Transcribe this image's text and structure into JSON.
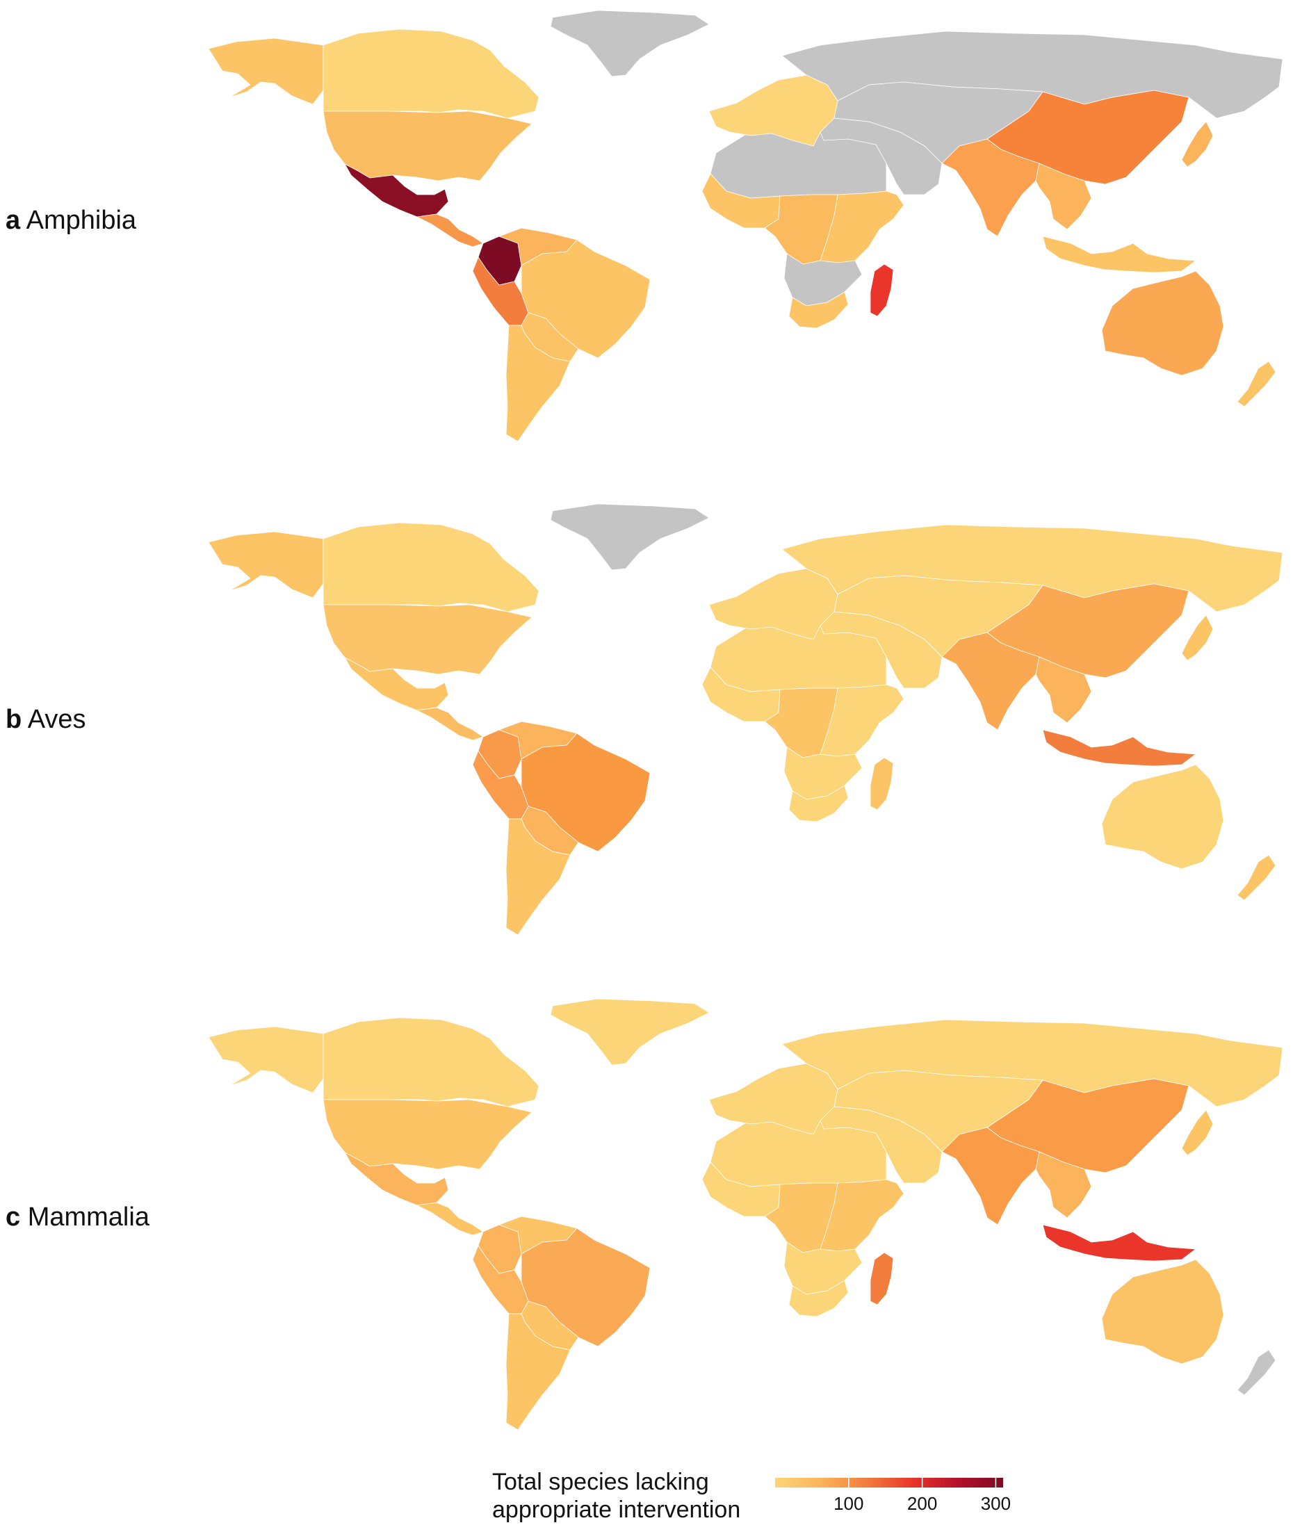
{
  "panels": [
    {
      "letter": "a",
      "name": "Amphibia",
      "regions": {
        "alaska": "#fcc464",
        "canada": "#fcd579",
        "usa": "#fbbd62",
        "greenland": "#c4c4c4",
        "mexico": "#8b0f24",
        "central_america": "#f7974a",
        "colombia": "#7d0b23",
        "venezuela": "#fbb45b",
        "ecuador_peru": "#f27d3c",
        "brazil": "#fcc464",
        "bolivia_paraguay": "#fbc266",
        "argentina_chile": "#fcc464",
        "north_africa": "#c4c4c4",
        "west_africa": "#fcc464",
        "central_africa": "#fbba5d",
        "east_africa": "#fcc464",
        "southern_africa": "#c4c4c4",
        "south_africa": "#fcc464",
        "madagascar": "#e9352a",
        "europe": "#fcd579",
        "russia": "#c4c4c4",
        "middle_east": "#c4c4c4",
        "central_asia": "#c4c4c4",
        "china": "#f7823a",
        "india": "#faa04f",
        "southeast_asia": "#fbb45b",
        "indonesia": "#fcc464",
        "australia": "#faa851",
        "new_zealand": "#fcc464",
        "japan": "#fbb45b"
      }
    },
    {
      "letter": "b",
      "name": "Aves",
      "regions": {
        "alaska": "#fcc464",
        "canada": "#fcd579",
        "usa": "#fbc468",
        "greenland": "#c4c4c4",
        "mexico": "#fcc464",
        "central_america": "#fbbd62",
        "colombia": "#f99a4a",
        "venezuela": "#fbb45b",
        "ecuador_peru": "#fa9c4b",
        "brazil": "#f99a42",
        "bolivia_paraguay": "#fbb45b",
        "argentina_chile": "#fcc464",
        "north_africa": "#fcd579",
        "west_africa": "#fcd579",
        "central_africa": "#fcc464",
        "east_africa": "#fcd579",
        "southern_africa": "#fcd579",
        "south_africa": "#fcd579",
        "madagascar": "#fcc464",
        "europe": "#fcd579",
        "russia": "#fcd579",
        "middle_east": "#fcd579",
        "central_asia": "#fcd579",
        "china": "#faa851",
        "india": "#faa851",
        "southeast_asia": "#fbb45b",
        "indonesia": "#f27d3c",
        "australia": "#fcd579",
        "new_zealand": "#fcc464",
        "japan": "#fcc464"
      }
    },
    {
      "letter": "c",
      "name": "Mammalia",
      "regions": {
        "alaska": "#fcd579",
        "canada": "#fcd579",
        "usa": "#fcc464",
        "greenland": "#fcd579",
        "mexico": "#fbb45b",
        "central_america": "#fcc464",
        "colombia": "#fbb45b",
        "venezuela": "#fcc464",
        "ecuador_peru": "#fbb45b",
        "brazil": "#faaa55",
        "bolivia_paraguay": "#fcc464",
        "argentina_chile": "#fcc464",
        "north_africa": "#fcd579",
        "west_africa": "#fcd579",
        "central_africa": "#fcc464",
        "east_africa": "#fcc464",
        "southern_africa": "#fcd579",
        "south_africa": "#fcd579",
        "madagascar": "#f27d3c",
        "europe": "#fcd579",
        "russia": "#fcd579",
        "middle_east": "#fcd579",
        "central_asia": "#fcd579",
        "china": "#f99b47",
        "india": "#f99b47",
        "southeast_asia": "#fbb45b",
        "indonesia": "#e9352a",
        "australia": "#fbc266",
        "new_zealand": "#c4c4c4",
        "japan": "#fcc464"
      }
    }
  ],
  "legend": {
    "title_line1": "Total species lacking",
    "title_line2": "appropriate intervention",
    "ticks": [
      "100",
      "200",
      "300"
    ],
    "tick_values": [
      100,
      200,
      300
    ],
    "range": [
      0,
      310
    ],
    "colors": [
      "#fcd579",
      "#fbb45b",
      "#f27d3c",
      "#e9352a",
      "#b5102a",
      "#7d0b23"
    ],
    "no_data_color": "#c4c4c4"
  }
}
